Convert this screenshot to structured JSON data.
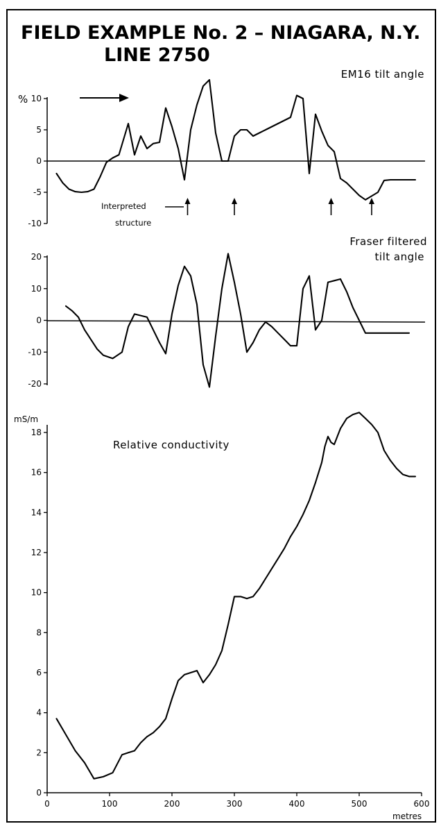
{
  "header": {
    "title": "FIELD EXAMPLE No. 2 – NIAGARA, N.Y.",
    "subtitle": "LINE 2750"
  },
  "chart_data": [
    {
      "type": "line",
      "title": "EM16 tilt angle",
      "ylabel": "%",
      "xlim": [
        0,
        600
      ],
      "ylim": [
        -10,
        10
      ],
      "yticks": [
        -10,
        -5,
        0,
        5,
        10
      ],
      "ytick_labels": [
        "-10",
        "-5",
        "0",
        "5",
        "10"
      ],
      "series": [
        {
          "x": [
            15,
            25,
            35,
            45,
            55,
            65,
            75,
            85,
            95,
            105,
            115,
            130,
            140,
            150,
            160,
            170,
            180,
            190,
            200,
            210,
            220,
            230,
            240,
            250,
            260,
            270,
            280,
            290,
            300,
            310,
            320,
            330,
            340,
            350,
            360,
            370,
            380,
            390,
            400,
            410,
            420,
            430,
            440,
            450,
            460,
            470,
            480,
            490,
            500,
            510,
            520,
            530,
            540,
            550,
            560,
            570,
            580,
            590
          ],
          "y": [
            -2,
            -3.5,
            -4.5,
            -4.9,
            -5,
            -4.9,
            -4.5,
            -2.5,
            -0.2,
            0.5,
            1,
            6,
            1,
            4,
            2,
            2.8,
            3,
            8.5,
            5.5,
            2,
            -3,
            5,
            9,
            12,
            13,
            4.5,
            0,
            0,
            4,
            5,
            5,
            4,
            4.5,
            5,
            5.5,
            6,
            6.5,
            7,
            10.5,
            10,
            -2,
            7.5,
            4.8,
            2.5,
            1.5,
            -2.8,
            -3.5,
            -4.5,
            -5.5,
            -6.2,
            -5.6,
            -5,
            -3.1,
            -3,
            -3,
            -3,
            -3,
            -3
          ]
        }
      ],
      "annotations": [
        {
          "text": "Interpreted structure",
          "x": [
            225,
            300,
            455,
            520
          ]
        }
      ]
    },
    {
      "type": "line",
      "title": "Fraser filtered tilt angle",
      "xlim": [
        0,
        600
      ],
      "ylim": [
        -20,
        20
      ],
      "yticks": [
        -20,
        -10,
        0,
        10,
        20
      ],
      "ytick_labels": [
        "-20",
        "-10",
        "0",
        "10",
        "20"
      ],
      "series": [
        {
          "x": [
            30,
            40,
            50,
            60,
            70,
            80,
            90,
            105,
            120,
            130,
            140,
            150,
            160,
            170,
            180,
            190,
            200,
            210,
            220,
            230,
            240,
            250,
            260,
            270,
            280,
            290,
            300,
            310,
            320,
            330,
            340,
            350,
            360,
            370,
            380,
            390,
            400,
            410,
            420,
            430,
            440,
            450,
            460,
            470,
            480,
            490,
            500,
            510,
            520,
            530,
            540,
            550,
            560,
            570,
            580
          ],
          "y": [
            4.5,
            3,
            1,
            -3,
            -6,
            -9,
            -11,
            -12,
            -10,
            -2,
            2,
            1.5,
            1,
            -3,
            -7,
            -10.5,
            2,
            11,
            17,
            14,
            5,
            -14,
            -21,
            -5,
            10,
            21,
            12,
            2,
            -10,
            -7,
            -3,
            -0.5,
            -2,
            -4,
            -6,
            -8,
            -8,
            10,
            14,
            -3,
            0,
            12,
            12.5,
            13,
            9,
            4,
            0,
            -4,
            -4,
            -4,
            -4,
            -4,
            -4,
            -4,
            -4
          ]
        }
      ]
    },
    {
      "type": "line",
      "title": "Relative conductivity",
      "ylabel": "mS/m",
      "xlabel": "metres",
      "xlim": [
        0,
        600
      ],
      "ylim": [
        0,
        18
      ],
      "xticks": [
        0,
        100,
        200,
        300,
        400,
        500,
        600
      ],
      "xtick_labels": [
        "0",
        "100",
        "200",
        "300",
        "400",
        "500",
        "600"
      ],
      "yticks": [
        0,
        2,
        4,
        6,
        8,
        10,
        12,
        14,
        16,
        18
      ],
      "ytick_labels": [
        "0",
        "2",
        "4",
        "6",
        "8",
        "10",
        "12",
        "14",
        "16",
        "18"
      ],
      "series": [
        {
          "x": [
            15,
            30,
            45,
            60,
            75,
            90,
            105,
            120,
            130,
            140,
            150,
            160,
            170,
            180,
            190,
            200,
            210,
            220,
            230,
            240,
            250,
            260,
            270,
            280,
            290,
            300,
            310,
            320,
            330,
            340,
            350,
            360,
            370,
            380,
            390,
            400,
            410,
            420,
            430,
            440,
            445,
            450,
            455,
            460,
            465,
            470,
            480,
            490,
            500,
            510,
            520,
            530,
            540,
            550,
            560,
            570,
            580,
            590
          ],
          "y": [
            3.7,
            2.9,
            2.1,
            1.5,
            0.7,
            0.8,
            1.0,
            1.9,
            2.0,
            2.1,
            2.5,
            2.8,
            3.0,
            3.3,
            3.7,
            4.7,
            5.6,
            5.9,
            6.0,
            6.1,
            5.5,
            5.9,
            6.4,
            7.1,
            8.4,
            9.8,
            9.8,
            9.7,
            9.8,
            10.2,
            10.7,
            11.2,
            11.7,
            12.2,
            12.8,
            13.3,
            13.9,
            14.6,
            15.5,
            16.5,
            17.3,
            17.8,
            17.5,
            17.4,
            17.8,
            18.2,
            18.7,
            18.9,
            19.0,
            18.7,
            18.4,
            18.0,
            17.1,
            16.6,
            16.2,
            15.9,
            15.8,
            15.8
          ]
        }
      ]
    }
  ]
}
